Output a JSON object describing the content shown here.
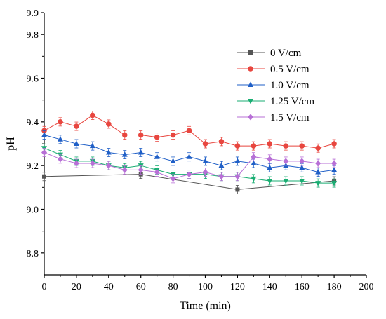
{
  "chart_data": {
    "type": "line",
    "title": "",
    "xlabel": "Time (min)",
    "ylabel": "pH",
    "xlim": [
      0,
      200
    ],
    "ylim": [
      8.7,
      9.9
    ],
    "x_ticks": [
      0,
      20,
      40,
      60,
      80,
      100,
      120,
      140,
      160,
      180,
      200
    ],
    "y_ticks": [
      8.8,
      9.0,
      9.2,
      9.4,
      9.6,
      9.8,
      9.9
    ],
    "grid": false,
    "legend_position": "top-right",
    "series": [
      {
        "name": "0 V/cm",
        "color": "#555555",
        "marker": "square",
        "points": [
          [
            0,
            9.15
          ],
          [
            60,
            9.16
          ],
          [
            120,
            9.09
          ],
          [
            180,
            9.13
          ]
        ]
      },
      {
        "name": "0.5 V/cm",
        "color": "#e8463f",
        "marker": "circle",
        "points": [
          [
            0,
            9.36
          ],
          [
            10,
            9.4
          ],
          [
            20,
            9.38
          ],
          [
            30,
            9.43
          ],
          [
            40,
            9.39
          ],
          [
            50,
            9.34
          ],
          [
            60,
            9.34
          ],
          [
            70,
            9.33
          ],
          [
            80,
            9.34
          ],
          [
            90,
            9.36
          ],
          [
            100,
            9.3
          ],
          [
            110,
            9.31
          ],
          [
            120,
            9.29
          ],
          [
            130,
            9.29
          ],
          [
            140,
            9.3
          ],
          [
            150,
            9.29
          ],
          [
            160,
            9.29
          ],
          [
            170,
            9.28
          ],
          [
            180,
            9.3
          ]
        ]
      },
      {
        "name": "1.0 V/cm",
        "color": "#1f5fc7",
        "marker": "triangle-up",
        "points": [
          [
            0,
            9.34
          ],
          [
            10,
            9.32
          ],
          [
            20,
            9.3
          ],
          [
            30,
            9.29
          ],
          [
            40,
            9.26
          ],
          [
            50,
            9.25
          ],
          [
            60,
            9.26
          ],
          [
            70,
            9.24
          ],
          [
            80,
            9.22
          ],
          [
            90,
            9.24
          ],
          [
            100,
            9.22
          ],
          [
            110,
            9.2
          ],
          [
            120,
            9.22
          ],
          [
            130,
            9.21
          ],
          [
            140,
            9.19
          ],
          [
            150,
            9.2
          ],
          [
            160,
            9.19
          ],
          [
            170,
            9.17
          ],
          [
            180,
            9.18
          ]
        ]
      },
      {
        "name": "1.25 V/cm",
        "color": "#1aae73",
        "marker": "triangle-down",
        "points": [
          [
            0,
            9.28
          ],
          [
            10,
            9.25
          ],
          [
            20,
            9.22
          ],
          [
            30,
            9.22
          ],
          [
            40,
            9.2
          ],
          [
            50,
            9.19
          ],
          [
            60,
            9.2
          ],
          [
            70,
            9.18
          ],
          [
            80,
            9.16
          ],
          [
            90,
            9.16
          ],
          [
            100,
            9.16
          ],
          [
            110,
            9.15
          ],
          [
            120,
            9.15
          ],
          [
            130,
            9.14
          ],
          [
            140,
            9.13
          ],
          [
            150,
            9.13
          ],
          [
            160,
            9.13
          ],
          [
            170,
            9.12
          ],
          [
            180,
            9.12
          ]
        ]
      },
      {
        "name": "1.5 V/cm",
        "color": "#b76fd6",
        "marker": "diamond",
        "points": [
          [
            0,
            9.26
          ],
          [
            10,
            9.23
          ],
          [
            20,
            9.21
          ],
          [
            30,
            9.21
          ],
          [
            40,
            9.2
          ],
          [
            50,
            9.18
          ],
          [
            60,
            9.18
          ],
          [
            70,
            9.17
          ],
          [
            80,
            9.14
          ],
          [
            90,
            9.16
          ],
          [
            100,
            9.17
          ],
          [
            110,
            9.15
          ],
          [
            120,
            9.15
          ],
          [
            130,
            9.24
          ],
          [
            140,
            9.23
          ],
          [
            150,
            9.22
          ],
          [
            160,
            9.22
          ],
          [
            170,
            9.21
          ],
          [
            180,
            9.21
          ]
        ]
      }
    ]
  }
}
